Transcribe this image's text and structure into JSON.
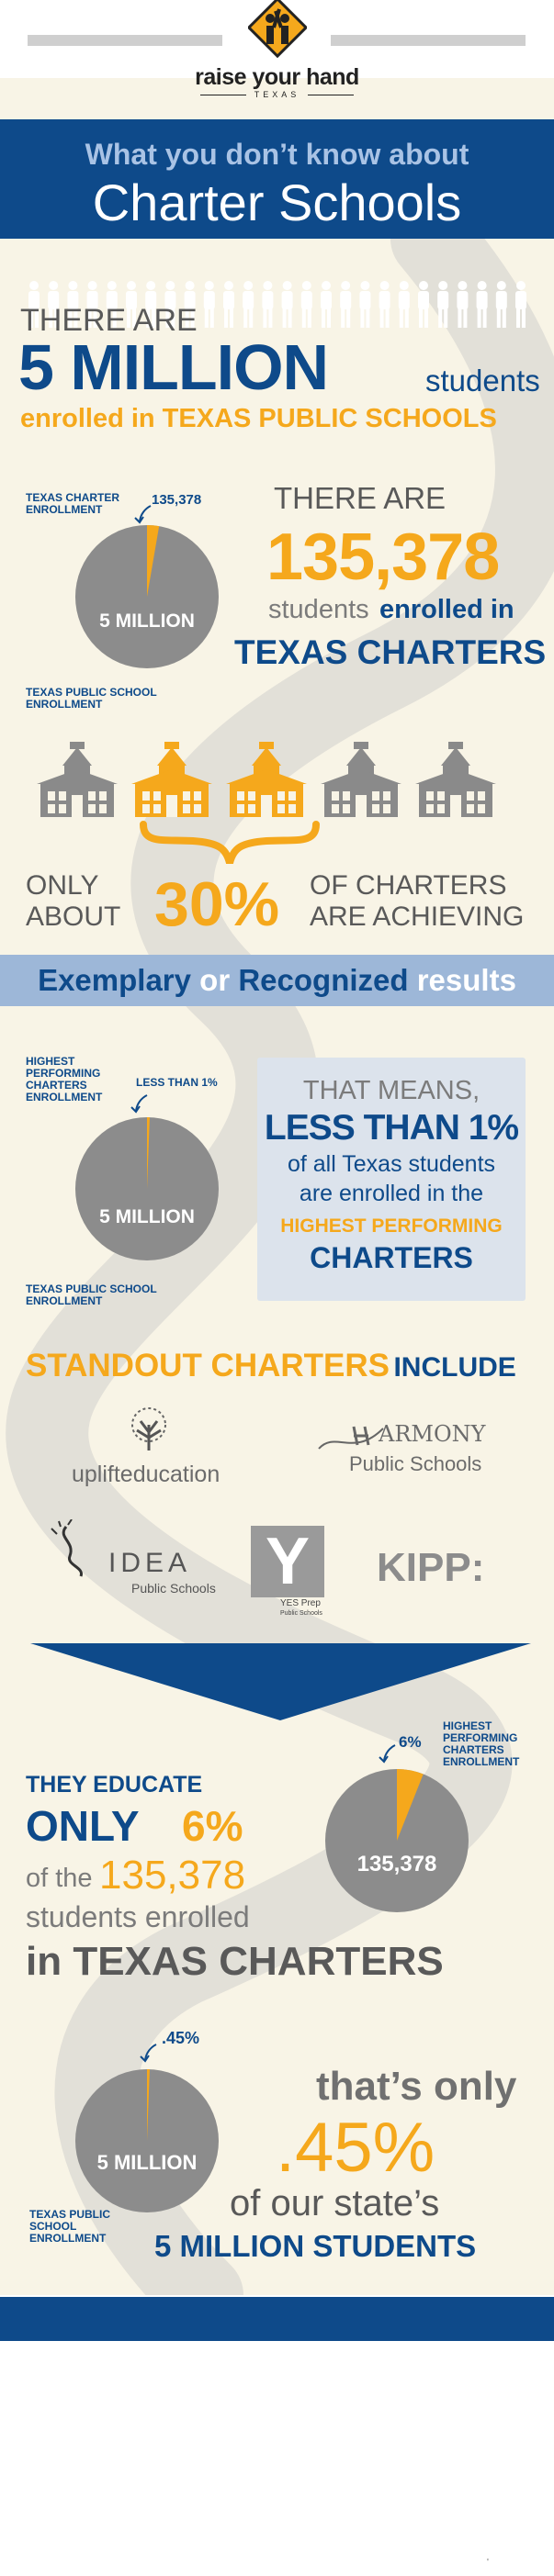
{
  "logo": {
    "name": "raise your hand",
    "sub": "TEXAS"
  },
  "title": {
    "line1": "What you don’t know about",
    "line2": "Charter Schools"
  },
  "section1": {
    "there_are": "THERE ARE",
    "big_number": "5 MILLION",
    "students": "students",
    "enrolled": "enrolled in TEXAS PUBLIC SCHOOLS"
  },
  "pie1": {
    "label_top": "TEXAS  CHARTER ENROLLMENT",
    "value_label": "135,378",
    "center": "5 MILLION",
    "label_bottom": "TEXAS PUBLIC SCHOOL ENROLLMENT",
    "slice_fraction": 0.027
  },
  "section2": {
    "there_are": "THERE ARE",
    "number": "135,378",
    "students": "students",
    "enrolled_in": "enrolled in",
    "charters": "TEXAS CHARTERS"
  },
  "schools": {
    "total": 5,
    "highlighted": [
      1,
      2
    ]
  },
  "section3": {
    "only": "ONLY",
    "about": "ABOUT",
    "percent": "30%",
    "of_charters": "OF CHARTERS",
    "are_achieving": "ARE ACHIEVING",
    "ribbon_exemplary": "Exemplary",
    "ribbon_or": "or",
    "ribbon_recognized": "Recognized",
    "ribbon_results": "results"
  },
  "pie2": {
    "label_top": "HIGHEST PERFORMING CHARTERS ENROLLMENT",
    "value_label": "LESS THAN 1%",
    "center": "5 MILLION",
    "label_bottom": "TEXAS PUBLIC SCHOOL ENROLLMENT",
    "slice_fraction": 0.005
  },
  "card": {
    "line1": "THAT MEANS,",
    "line2": "LESS THAN 1%",
    "line3": "of all Texas students",
    "line4": "are enrolled in the",
    "line5": "HIGHEST PERFORMING",
    "line6": "CHARTERS"
  },
  "standout": {
    "title_orange": "STANDOUT CHARTERS",
    "title_navy": "INCLUDE",
    "logos": {
      "uplift": "uplifteducation",
      "harmony": "ARMONY",
      "harmony_sub": "Public Schools",
      "idea": "IDEA",
      "idea_sub": "Public Schools",
      "yes_letter": "Y",
      "yes": "YES Prep",
      "yes_sub": "Public Schools",
      "kipp": "KIPP:"
    }
  },
  "pie3": {
    "label_top": "HIGHEST PERFORMING CHARTERS ENROLLMENT",
    "value_label": "6%",
    "center": "135,378",
    "slice_fraction": 0.06
  },
  "section4": {
    "they_educate": "THEY EDUCATE",
    "only": "ONLY",
    "percent": "6%",
    "of_the": "of the",
    "number": "135,378",
    "students_enrolled": "students enrolled",
    "in_charters": "in TEXAS CHARTERS"
  },
  "pie4": {
    "value_label": ".45%",
    "center": "5 MILLION",
    "label_bottom": "TEXAS PUBLIC SCHOOL ENROLLMENT",
    "slice_fraction": 0.0045
  },
  "section5": {
    "thats_only": "that’s only",
    "percent": ".45%",
    "of_our": "of our state’s",
    "students": "5 MILLION STUDENTS"
  },
  "footer": {
    "mark": "'"
  },
  "colors": {
    "navy": "#0e4a8a",
    "orange": "#f5a81c",
    "gray": "#8c8c8c",
    "cream": "#f8f4e6",
    "light_blue": "#9db7d8"
  }
}
